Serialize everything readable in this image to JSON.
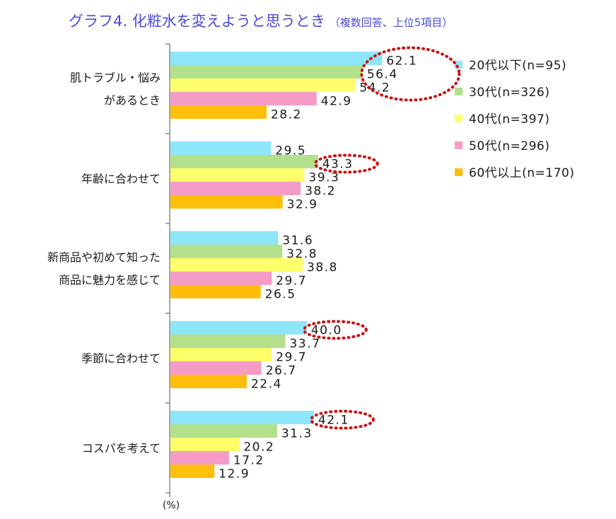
{
  "chart_data": {
    "type": "bar",
    "orientation": "horizontal",
    "title": "グラフ4.  化粧水を変えようと思うとき",
    "subtitle": "（複数回答、上位5項目）",
    "ylabel": "(%)",
    "xlim": [
      0,
      100
    ],
    "grid": false,
    "legend_position": "right",
    "categories": [
      [
        "肌トラブル・悩み",
        "があるとき"
      ],
      [
        "年齢に合わせて"
      ],
      [
        "新商品や初めて知った",
        "商品に魅力を感じて"
      ],
      [
        "季節に合わせて"
      ],
      [
        "コスパを考えて"
      ]
    ],
    "series": [
      {
        "name": "20代以下(n=95)",
        "color": "#8ee6fb",
        "values": [
          62.1,
          29.5,
          31.6,
          40.0,
          42.1
        ]
      },
      {
        "name": "30代(n=326)",
        "color": "#b2e08b",
        "values": [
          56.4,
          43.3,
          32.8,
          33.7,
          31.3
        ]
      },
      {
        "name": "40代(n=397)",
        "color": "#ffff6b",
        "values": [
          54.2,
          39.3,
          38.8,
          29.7,
          20.2
        ]
      },
      {
        "name": "50代(n=296)",
        "color": "#f59cc6",
        "values": [
          42.9,
          38.2,
          29.7,
          26.7,
          17.2
        ]
      },
      {
        "name": "60代以上(n=170)",
        "color": "#ffbe0a",
        "values": [
          28.2,
          32.9,
          26.5,
          22.4,
          12.9
        ]
      }
    ],
    "highlights": [
      {
        "category": 0,
        "series": [
          0,
          1,
          2
        ]
      },
      {
        "category": 1,
        "series": [
          1
        ]
      },
      {
        "category": 3,
        "series": [
          0
        ]
      },
      {
        "category": 4,
        "series": [
          0
        ]
      }
    ],
    "highlight_color": "#cc1111"
  }
}
